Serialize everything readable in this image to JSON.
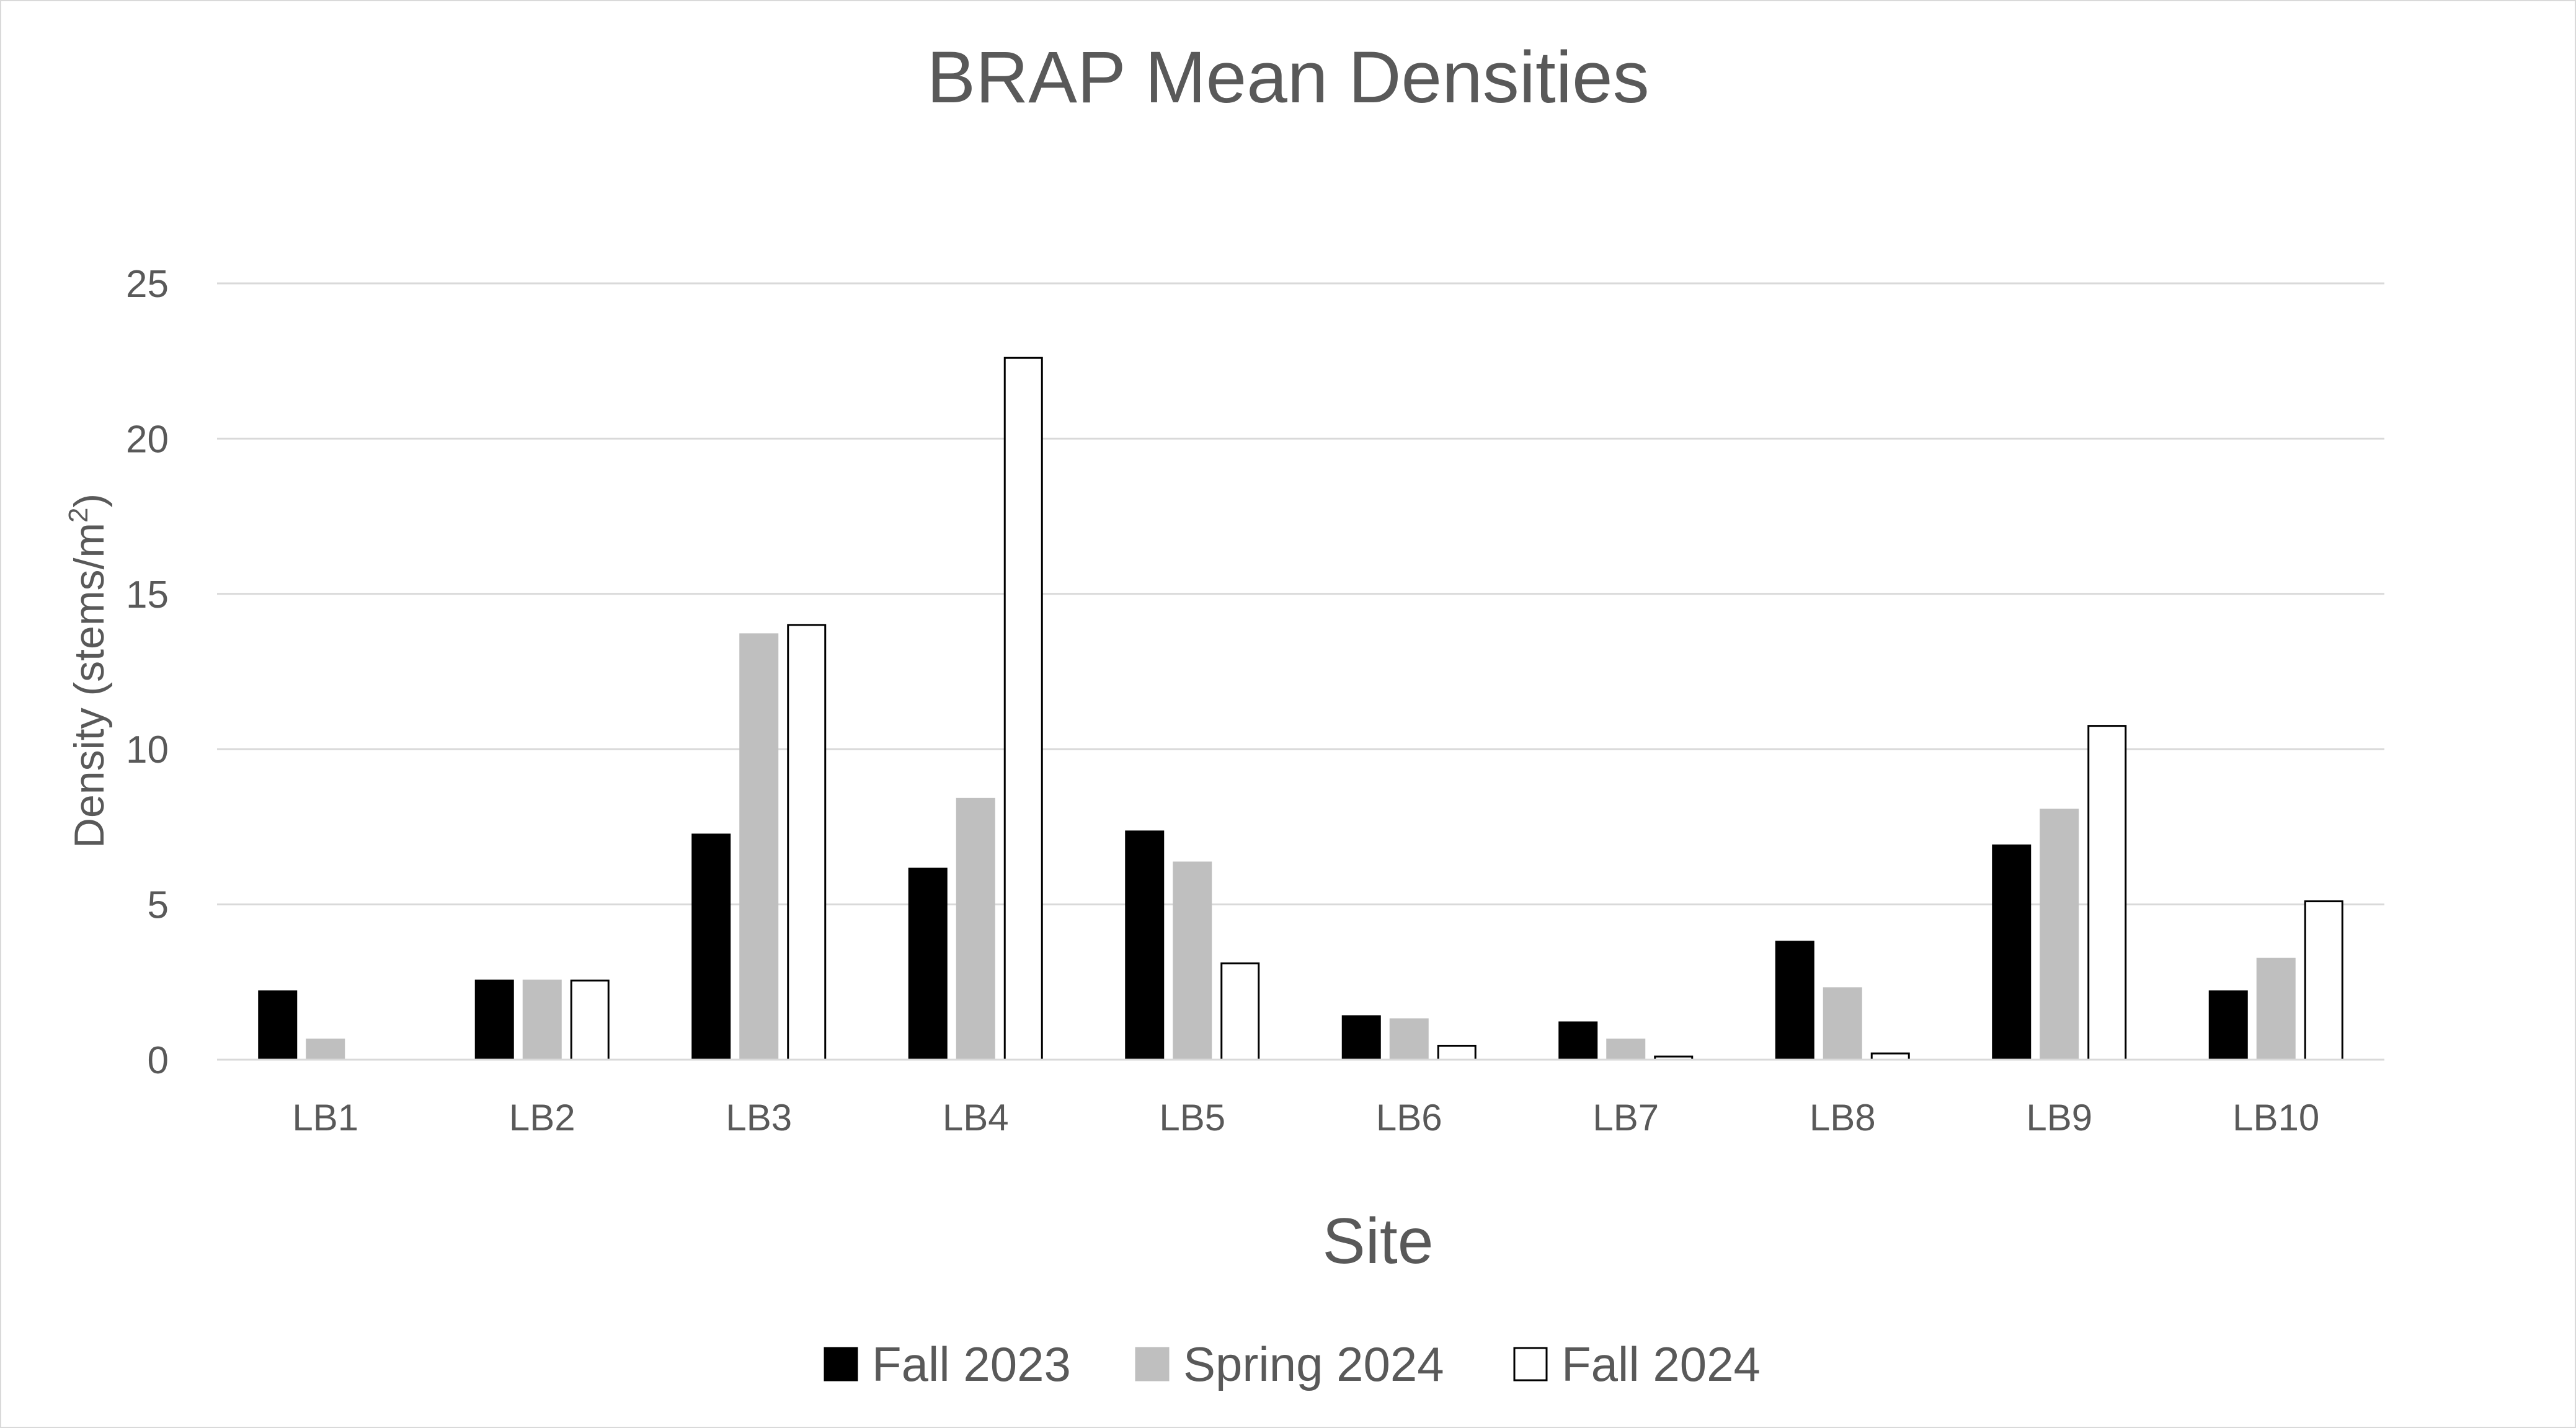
{
  "chart_data": {
    "type": "bar",
    "title": "BRAP Mean Densities",
    "xlabel": "Site",
    "ylabel_main": "Density (stems/m",
    "ylabel_sup": "2",
    "ylabel_close": ")",
    "ylim": [
      0,
      25
    ],
    "yticks": [
      "0",
      "5",
      "10",
      "15",
      "20",
      "25"
    ],
    "yticks_values": [
      0,
      5,
      10,
      15,
      20,
      25
    ],
    "grid": true,
    "legend_position": "bottom",
    "categories": [
      "LB1",
      "LB2",
      "LB3",
      "LB4",
      "LB5",
      "LB6",
      "LB7",
      "LB8",
      "LB9",
      "LB10"
    ],
    "series": [
      {
        "name": "Fall 2023",
        "color": "#000000",
        "stroke": "#000000",
        "values": [
          2.2,
          2.55,
          7.25,
          6.15,
          7.35,
          1.4,
          1.2,
          3.8,
          6.9,
          2.2
        ]
      },
      {
        "name": "Spring 2024",
        "color": "#bfbfbf",
        "stroke": "#bfbfbf",
        "values": [
          0.65,
          2.55,
          13.7,
          8.4,
          6.35,
          1.3,
          0.65,
          2.3,
          8.05,
          3.25
        ]
      },
      {
        "name": "Fall 2024",
        "color": "#ffffff",
        "stroke": "#000000",
        "values": [
          0,
          2.55,
          14.0,
          22.6,
          3.1,
          0.45,
          0.1,
          0.2,
          10.75,
          5.1
        ]
      }
    ]
  }
}
